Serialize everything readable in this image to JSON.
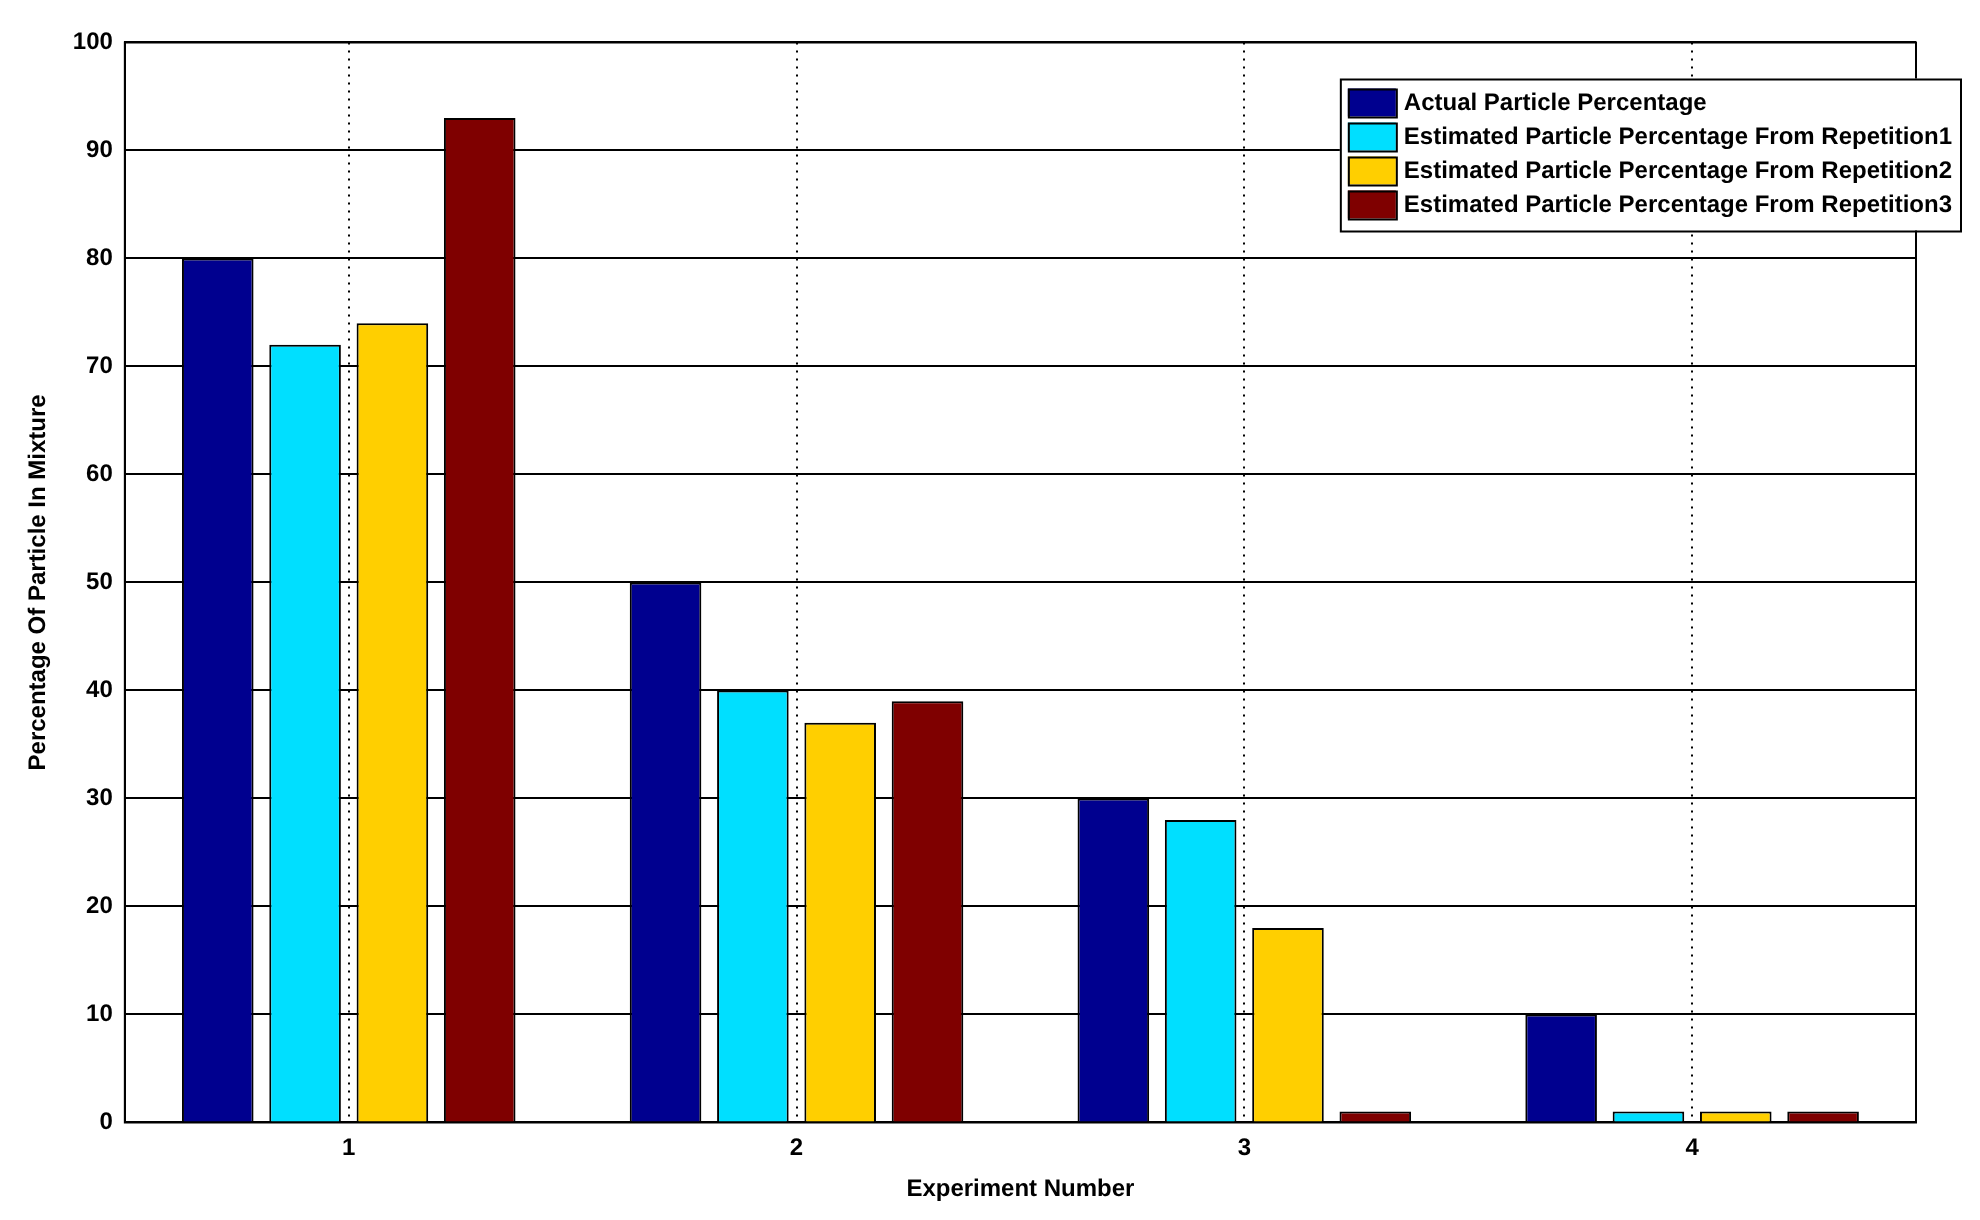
{
  "chart_data": {
    "type": "bar",
    "xlabel": "Experiment Number",
    "ylabel": "Percentage Of Particle In Mixture",
    "categories": [
      "1",
      "2",
      "3",
      "4"
    ],
    "series": [
      {
        "name": "Actual Particle Percentage",
        "color": "#00008f",
        "values": [
          80,
          50,
          30,
          10
        ]
      },
      {
        "name": "Estimated Particle Percentage From Repetition1",
        "color": "#00dfff",
        "values": [
          72,
          40,
          28,
          1
        ]
      },
      {
        "name": "Estimated Particle Percentage From Repetition2",
        "color": "#ffcf00",
        "values": [
          74,
          37,
          18,
          1
        ]
      },
      {
        "name": "Estimated Particle Percentage From Repetition3",
        "color": "#7f0000",
        "values": [
          93,
          39,
          1,
          1
        ]
      }
    ],
    "ylim": [
      0,
      100
    ],
    "yticks": [
      0,
      10,
      20,
      30,
      40,
      50,
      60,
      70,
      80,
      90,
      100
    ],
    "grid": true,
    "legend": "top right"
  }
}
